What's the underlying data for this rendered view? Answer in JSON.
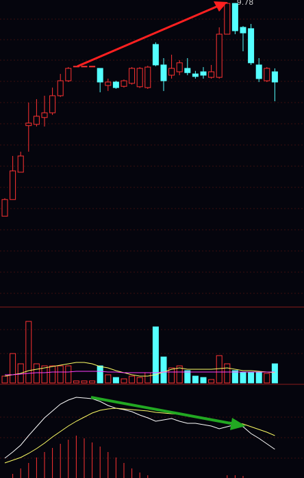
{
  "chart_data": [
    {
      "type": "candlestick",
      "up_color": "#ff3232",
      "down_color": "#54ffff",
      "ylim": [
        2.66,
        9.83
      ],
      "open": [
        4.77,
        5.16,
        5.8,
        6.89,
        6.92,
        7.08,
        7.19,
        7.59,
        7.94,
        8.28,
        8.28,
        8.28,
        8.23,
        7.83,
        7.91,
        7.81,
        7.88,
        7.8,
        7.78,
        8.79,
        8.31,
        8.07,
        8.15,
        8.23,
        8.1,
        8.15,
        8.02,
        8.02,
        9.03,
        9.75,
        9.19,
        9.16,
        8.31,
        7.94,
        8.15
      ],
      "high": [
        5.19,
        6.18,
        6.28,
        7.43,
        7.51,
        7.59,
        7.78,
        8.1,
        8.26,
        8.28,
        8.28,
        8.28,
        8.23,
        7.99,
        7.94,
        7.97,
        8.26,
        8.26,
        8.29,
        8.84,
        8.47,
        8.55,
        8.42,
        8.47,
        8.17,
        8.26,
        8.31,
        9.19,
        9.78,
        9.76,
        9.22,
        9.27,
        8.47,
        8.26,
        8.23
      ],
      "low": [
        4.77,
        5.16,
        5.8,
        6.28,
        6.87,
        6.87,
        7.14,
        7.56,
        7.91,
        8.28,
        8.28,
        8.28,
        7.67,
        7.7,
        7.75,
        7.78,
        7.85,
        7.77,
        7.75,
        8.28,
        7.7,
        7.99,
        8.07,
        8.07,
        7.99,
        7.99,
        7.99,
        7.99,
        9.03,
        9.03,
        8.63,
        8.31,
        7.91,
        7.91,
        7.46
      ],
      "close": [
        5.16,
        5.83,
        6.18,
        6.95,
        7.11,
        7.19,
        7.59,
        7.94,
        8.23,
        8.28,
        8.28,
        8.28,
        7.91,
        7.91,
        7.78,
        7.94,
        8.23,
        8.23,
        8.26,
        8.31,
        7.94,
        8.23,
        8.36,
        8.13,
        8.04,
        8.07,
        8.15,
        9.03,
        9.75,
        9.11,
        9.06,
        8.36,
        7.99,
        8.23,
        7.91
      ],
      "annotations": [
        {
          "label": "9.78",
          "value": 9.78
        }
      ]
    },
    {
      "type": "bar",
      "ylim": [
        0,
        108
      ],
      "values": [
        10,
        43,
        28,
        90,
        28,
        25,
        25,
        25,
        25,
        3,
        3,
        3,
        25,
        12,
        8,
        6,
        10,
        8,
        15,
        82,
        38,
        22,
        25,
        18,
        10,
        8,
        5,
        40,
        28,
        18,
        15,
        15,
        15,
        14,
        28
      ],
      "series": [
        {
          "color": "#ffff66",
          "values": [
            10,
            12,
            14,
            18,
            20,
            22,
            24,
            26,
            28,
            30,
            30,
            28,
            24,
            22,
            18,
            15,
            12,
            10,
            10,
            12,
            16,
            20,
            22,
            20,
            20,
            20,
            20,
            21,
            22,
            20,
            18,
            18,
            17,
            16,
            15
          ]
        },
        {
          "color": "#ff40ff",
          "values": [
            12,
            12,
            13,
            14,
            15,
            15,
            16,
            16,
            16,
            17,
            17,
            17,
            17,
            16,
            16,
            15,
            15,
            15,
            15,
            15,
            16,
            16,
            16,
            16,
            16,
            16,
            16,
            16,
            16,
            16,
            16,
            16,
            16,
            16,
            16
          ]
        }
      ]
    },
    {
      "type": "macd",
      "ylim": [
        0,
        134
      ],
      "bar_color": "#ff3232",
      "values": [
        0,
        6,
        14,
        22,
        30,
        38,
        44,
        50,
        56,
        62,
        58,
        52,
        46,
        38,
        30,
        22,
        14,
        8,
        4,
        0,
        0,
        0,
        0,
        0,
        0,
        0,
        0,
        0,
        4,
        4,
        3,
        0,
        0,
        0,
        0
      ],
      "series": [
        {
          "color": "#ffffff",
          "values": [
            29,
            38,
            48,
            62,
            75,
            88,
            98,
            108,
            114,
            118,
            117,
            116,
            112,
            106,
            102,
            100,
            97,
            92,
            88,
            83,
            85,
            87,
            83,
            80,
            80,
            78,
            76,
            72,
            75,
            78,
            75,
            65,
            58,
            50,
            42
          ]
        },
        {
          "color": "#ffff66",
          "values": [
            22,
            26,
            30,
            36,
            43,
            51,
            60,
            68,
            76,
            83,
            89,
            95,
            99,
            101,
            102,
            101,
            100,
            99,
            98,
            96,
            95,
            94,
            93,
            91,
            89,
            88,
            86,
            84,
            82,
            81,
            79,
            75,
            71,
            67,
            62
          ]
        }
      ]
    }
  ]
}
